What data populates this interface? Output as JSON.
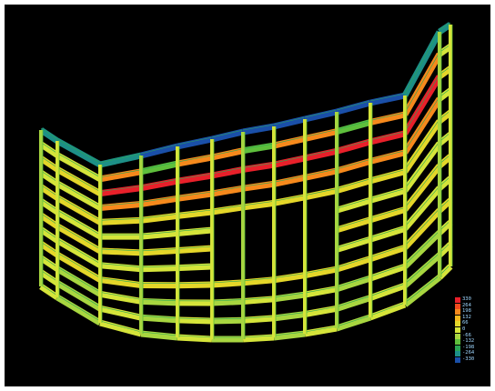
{
  "legend": {
    "items": [
      {
        "label": "330",
        "color": "#e8202a"
      },
      {
        "label": "264",
        "color": "#f04a1e"
      },
      {
        "label": "198",
        "color": "#f6891c"
      },
      {
        "label": "132",
        "color": "#f7b81e"
      },
      {
        "label": "66",
        "color": "#e4d629"
      },
      {
        "label": "0",
        "color": "#d5e43a"
      },
      {
        "label": "-66",
        "color": "#a8d640"
      },
      {
        "label": "-132",
        "color": "#5ebf3c"
      },
      {
        "label": "-198",
        "color": "#2aa553"
      },
      {
        "label": "-264",
        "color": "#1d8f87"
      },
      {
        "label": "-330",
        "color": "#1a4fa8"
      }
    ]
  }
}
